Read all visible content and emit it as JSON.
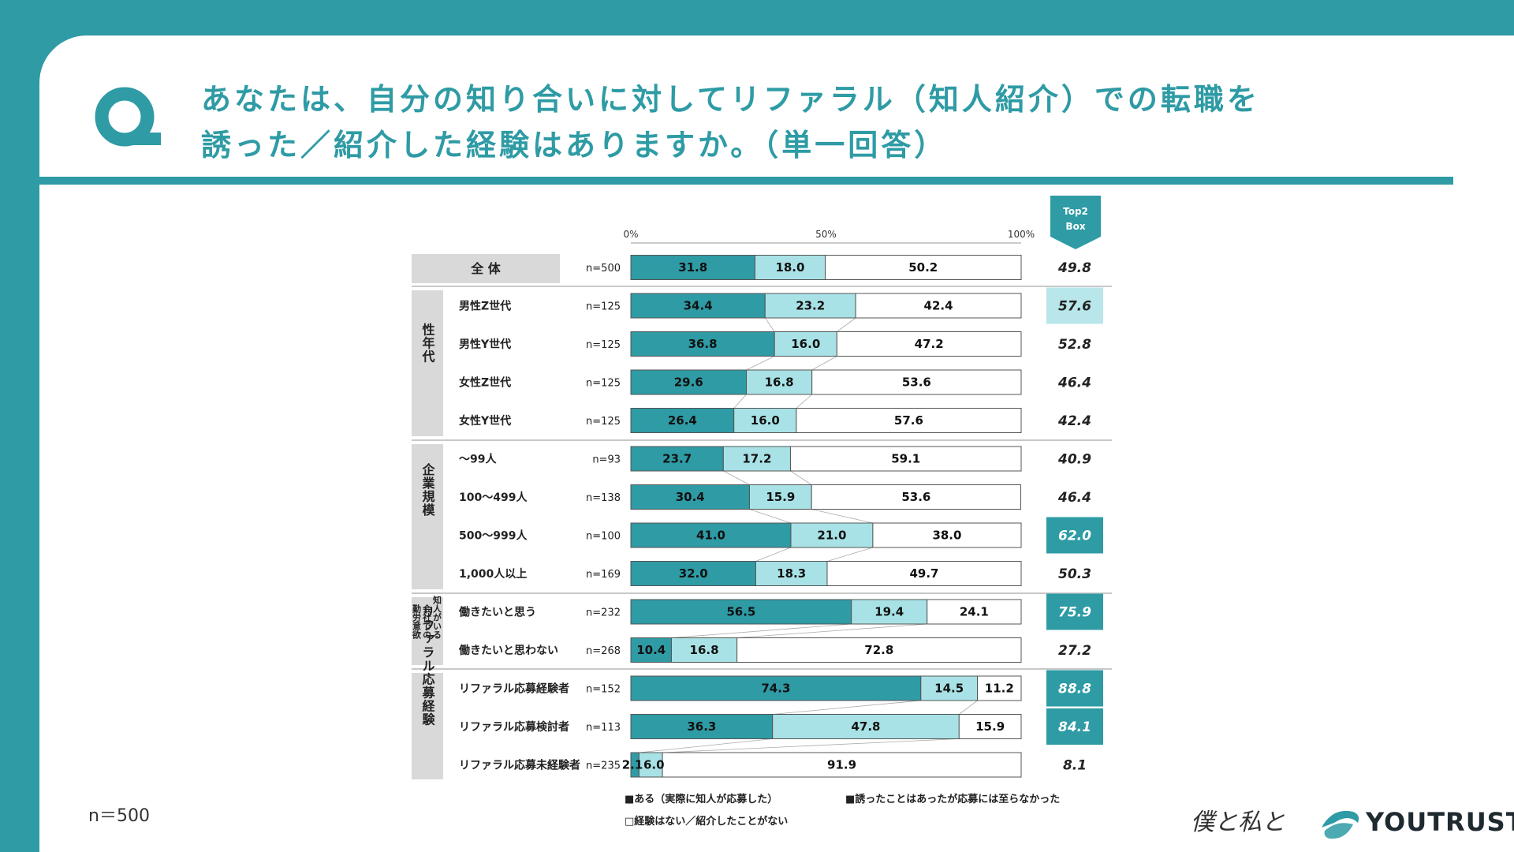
{
  "title": {
    "line1": "あなたは、自分の知り合いに対してリファラル（知人紹介）での転職を",
    "line2": "誘った／紹介した経験はありますか。（単一回答）"
  },
  "sample_note": "n＝500",
  "brand": {
    "script": "僕と私と",
    "name": "YOUTRUST"
  },
  "colors": {
    "accent": "#2e9ba5",
    "light": "#a8e2e6",
    "highlight_light": "#b8e6ea",
    "text": "#222222"
  },
  "chart_data": {
    "type": "stacked-bar-horizontal",
    "axis_ticks": [
      "0%",
      "50%",
      "100%"
    ],
    "xlim": [
      0,
      100
    ],
    "top2_header": [
      "Top2",
      "Box"
    ],
    "series": [
      {
        "name": "ある（実際に知人が応募した）",
        "legend": "■ある（実際に知人が応募した）",
        "color": "#2e9ba5"
      },
      {
        "name": "誘ったことはあったが応募には至らなかった",
        "legend": "■誘ったことはあったが応募には至らなかった",
        "color": "#a8e2e6"
      },
      {
        "name": "経験はない／紹介したことがない",
        "legend": "□経験はない／紹介したことがない",
        "color": "#ffffff"
      }
    ],
    "groups": [
      {
        "label": "全体",
        "display": "全 体",
        "rows": [
          0
        ]
      },
      {
        "label": "性年代",
        "rows": [
          1,
          2,
          3,
          4
        ]
      },
      {
        "label": "企業規模",
        "rows": [
          5,
          6,
          7,
          8
        ]
      },
      {
        "label": "知人がいる会社での勤労意欲",
        "columns": [
          "知人がいる",
          "会社での",
          "勤労意欲"
        ],
        "rows": [
          9,
          10
        ]
      },
      {
        "label": "リファラル応募経験",
        "rows": [
          11,
          12,
          13
        ]
      }
    ],
    "rows": [
      {
        "label": "全体",
        "n": "n=500",
        "values": [
          31.8,
          18.0,
          50.2
        ],
        "labels": [
          "31.8",
          "18.0",
          "50.2"
        ],
        "top2": "49.8",
        "highlight": "none"
      },
      {
        "label": "男性Z世代",
        "n": "n=125",
        "values": [
          34.4,
          23.2,
          42.4
        ],
        "labels": [
          "34.4",
          "23.2",
          "42.4"
        ],
        "top2": "57.6",
        "highlight": "light"
      },
      {
        "label": "男性Y世代",
        "n": "n=125",
        "values": [
          36.8,
          16.0,
          47.2
        ],
        "labels": [
          "36.8",
          "16.0",
          "47.2"
        ],
        "top2": "52.8",
        "highlight": "none"
      },
      {
        "label": "女性Z世代",
        "n": "n=125",
        "values": [
          29.6,
          16.8,
          53.6
        ],
        "labels": [
          "29.6",
          "16.8",
          "53.6"
        ],
        "top2": "46.4",
        "highlight": "none"
      },
      {
        "label": "女性Y世代",
        "n": "n=125",
        "values": [
          26.4,
          16.0,
          57.6
        ],
        "labels": [
          "26.4",
          "16.0",
          "57.6"
        ],
        "top2": "42.4",
        "highlight": "none"
      },
      {
        "label": "～99人",
        "n": "n=93",
        "values": [
          23.7,
          17.2,
          59.1
        ],
        "labels": [
          "23.7",
          "17.2",
          "59.1"
        ],
        "top2": "40.9",
        "highlight": "none"
      },
      {
        "label": "100～499人",
        "n": "n=138",
        "values": [
          30.4,
          15.9,
          53.6
        ],
        "labels": [
          "30.4",
          "15.9",
          "53.6"
        ],
        "top2": "46.4",
        "highlight": "none"
      },
      {
        "label": "500～999人",
        "n": "n=100",
        "values": [
          41.0,
          21.0,
          38.0
        ],
        "labels": [
          "41.0",
          "21.0",
          "38.0"
        ],
        "top2": "62.0",
        "highlight": "dark"
      },
      {
        "label": "1,000人以上",
        "n": "n=169",
        "values": [
          32.0,
          18.3,
          49.7
        ],
        "labels": [
          "32.0",
          "18.3",
          "49.7"
        ],
        "top2": "50.3",
        "highlight": "none"
      },
      {
        "label": "働きたいと思う",
        "n": "n=232",
        "values": [
          56.5,
          19.4,
          24.1
        ],
        "labels": [
          "56.5",
          "19.4",
          "24.1"
        ],
        "top2": "75.9",
        "highlight": "dark"
      },
      {
        "label": "働きたいと思わない",
        "n": "n=268",
        "values": [
          10.4,
          16.8,
          72.8
        ],
        "labels": [
          "10.4",
          "16.8",
          "72.8"
        ],
        "top2": "27.2",
        "highlight": "none"
      },
      {
        "label": "リファラル応募経験者",
        "n": "n=152",
        "values": [
          74.3,
          14.5,
          11.2
        ],
        "labels": [
          "74.3",
          "14.5",
          "11.2"
        ],
        "top2": "88.8",
        "highlight": "dark"
      },
      {
        "label": "リファラル応募検討者",
        "n": "n=113",
        "values": [
          36.3,
          47.8,
          15.9
        ],
        "labels": [
          "36.3",
          "47.8",
          "15.9"
        ],
        "top2": "84.1",
        "highlight": "dark"
      },
      {
        "label": "リファラル応募未経験者",
        "n": "n=235",
        "values": [
          2.1,
          6.0,
          91.9
        ],
        "labels": [
          "2.1",
          "6.0",
          "91.9"
        ],
        "top2": "8.1",
        "highlight": "none"
      }
    ]
  }
}
